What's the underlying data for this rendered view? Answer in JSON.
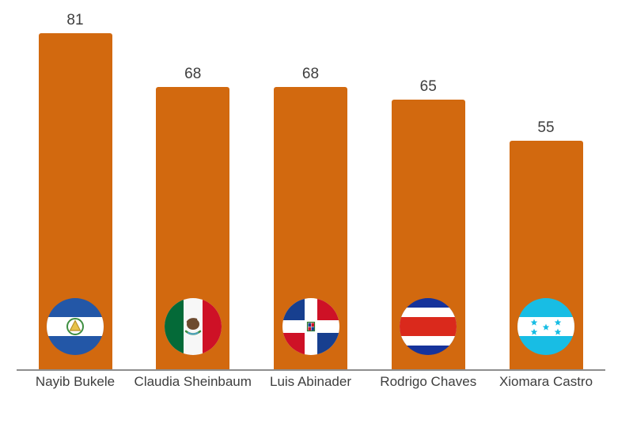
{
  "chart_data": {
    "type": "bar",
    "title": "",
    "categories": [
      "Nayib Bukele",
      "Claudia Sheinbaum",
      "Luis Abinader",
      "Rodrigo Chaves",
      "Xiomara Castro"
    ],
    "values": [
      81,
      68,
      68,
      65,
      55
    ],
    "ylim": [
      0,
      90
    ],
    "grid": false,
    "legend": false,
    "value_labels_shown": true,
    "bar_color": "#D2690F",
    "axis_line_color": "#8E8E8E",
    "label_color": "#3E3E3E",
    "background_color": "#FFFFFF",
    "flags": [
      {
        "icon": "el-salvador-flag-icon",
        "country": "El Salvador",
        "colors": {
          "band": "#2357A7",
          "white": "#FFFFFF",
          "wreath": "#3E8E41",
          "gold": "#E8C24A",
          "gold_dark": "#B8922A"
        }
      },
      {
        "icon": "mexico-flag-icon",
        "country": "Mexico",
        "colors": {
          "green": "#046A38",
          "white": "#F7F7F7",
          "red": "#CE1126",
          "eagle": "#6D4A2F",
          "wreath": "#3E8E41",
          "water": "#4FA3C4"
        }
      },
      {
        "icon": "dominican-republic-flag-icon",
        "country": "Dominican Republic",
        "colors": {
          "blue": "#173F8F",
          "red": "#CE1126",
          "white": "#FFFFFF",
          "shield_green": "#2E7D32"
        }
      },
      {
        "icon": "costa-rica-flag-icon",
        "country": "Costa Rica",
        "colors": {
          "blue": "#16339B",
          "white": "#FFFFFF",
          "red": "#DA291C"
        }
      },
      {
        "icon": "honduras-flag-icon",
        "country": "Honduras",
        "colors": {
          "cyan": "#18BDE4",
          "white": "#FFFFFF"
        }
      }
    ]
  }
}
